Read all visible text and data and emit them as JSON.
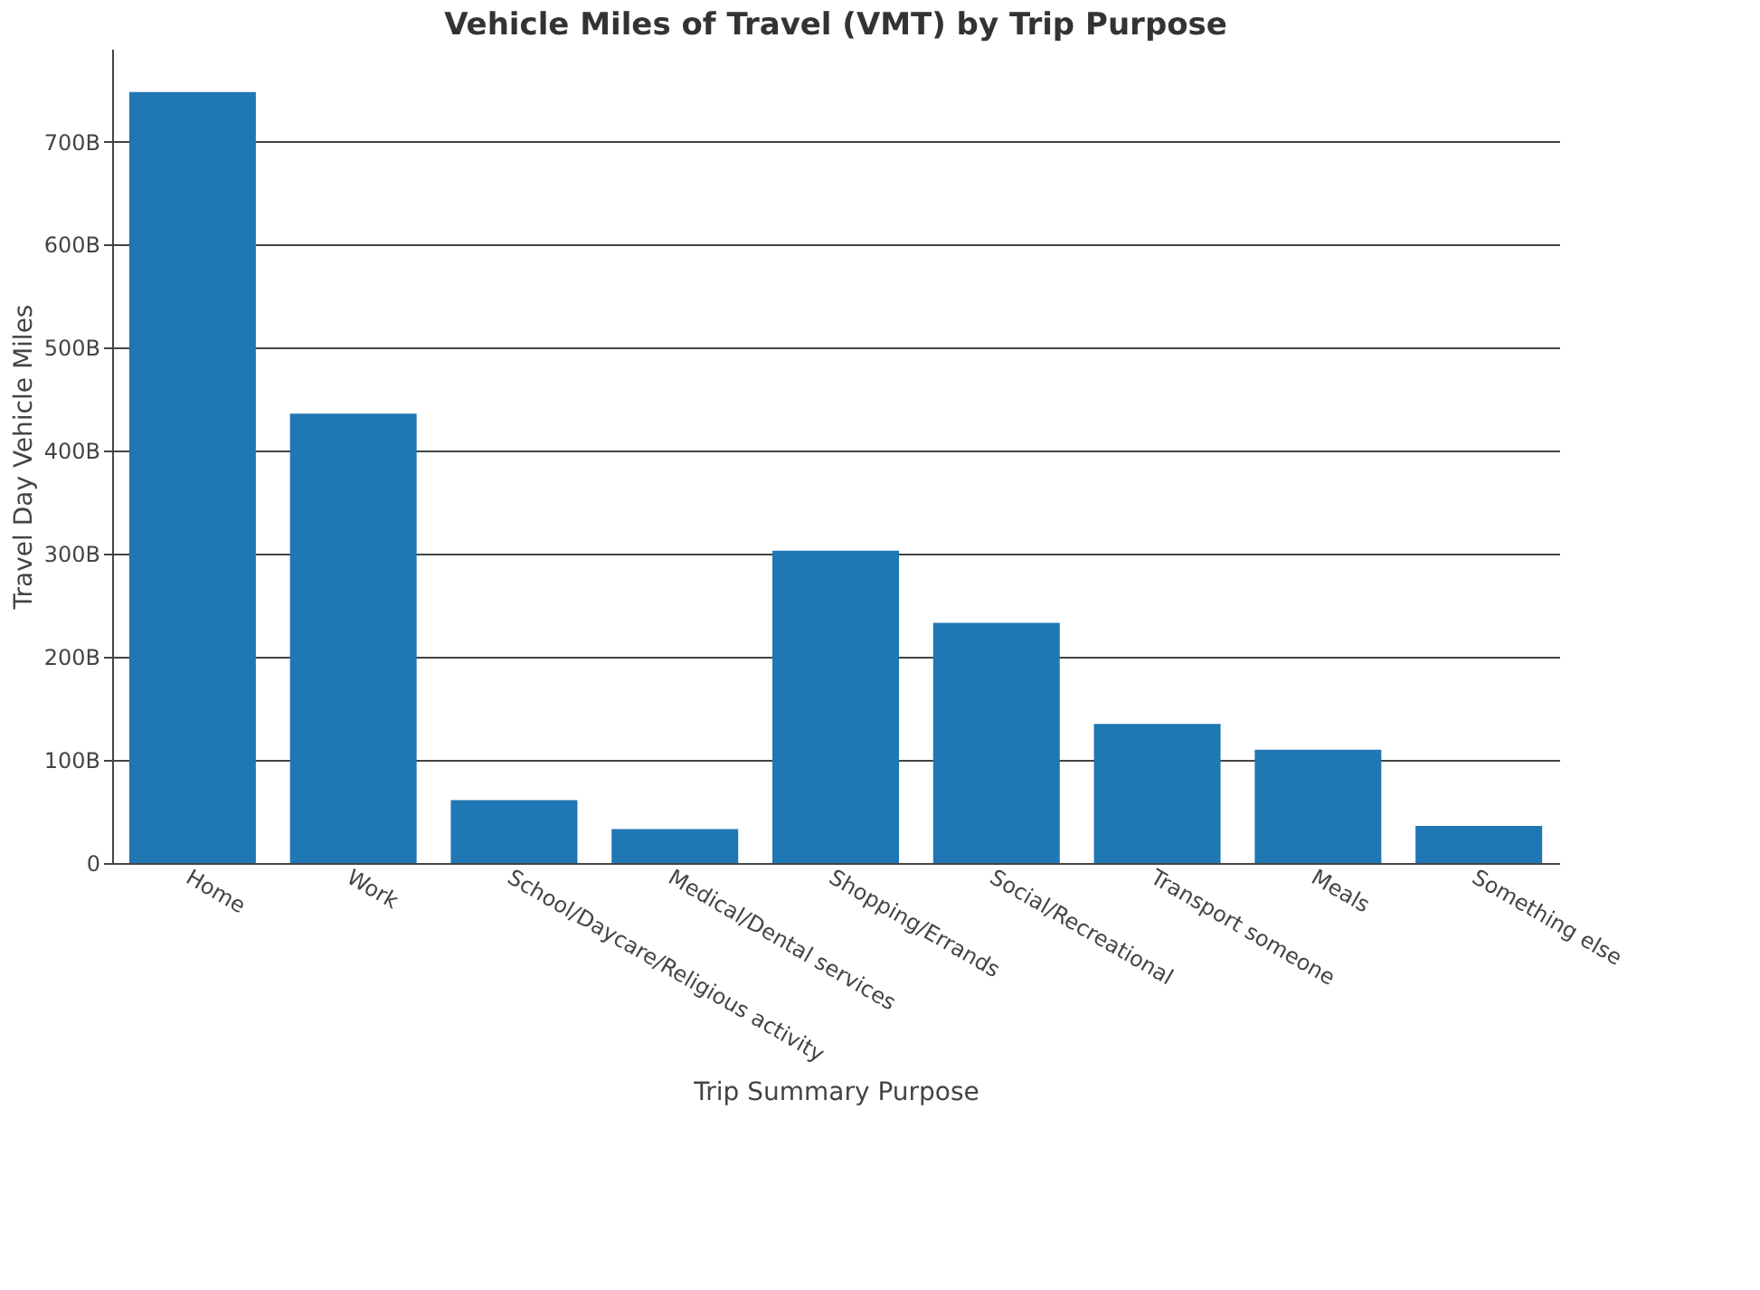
{
  "chart_data": {
    "type": "bar",
    "title": "Vehicle Miles of Travel (VMT) by Trip Purpose",
    "xlabel": "Trip Summary Purpose",
    "ylabel": "Travel Day Vehicle Miles",
    "categories": [
      "Home",
      "Work",
      "School/Daycare/Religious activity",
      "Medical/Dental services",
      "Shopping/Errands",
      "Social/Recreational",
      "Transport someone",
      "Meals",
      "Something else"
    ],
    "values": [
      748,
      436,
      61,
      33,
      303,
      233,
      135,
      110,
      36
    ],
    "color": "#1f77b4",
    "ylim": [
      0,
      790
    ],
    "yticks": [
      0,
      {
        "value": 100,
        "label": "100B"
      },
      {
        "value": 200,
        "label": "200B"
      },
      {
        "value": 300,
        "label": "300B"
      },
      {
        "value": 400,
        "label": "400B"
      },
      {
        "value": 500,
        "label": "500B"
      },
      {
        "value": 600,
        "label": "600B"
      },
      {
        "value": 700,
        "label": "700B"
      }
    ],
    "grid": "y"
  }
}
